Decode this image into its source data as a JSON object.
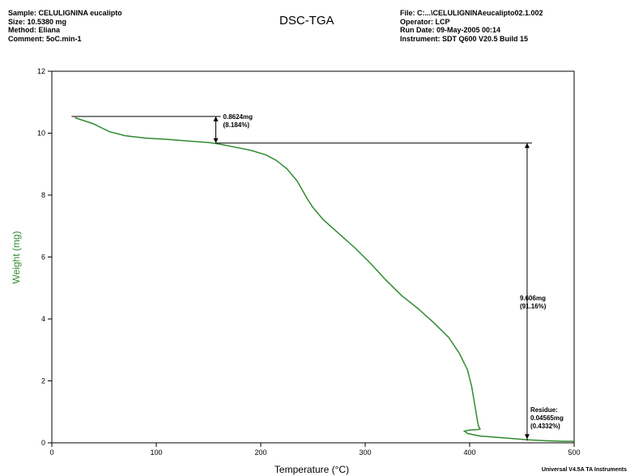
{
  "header": {
    "left": [
      "Sample: CELULIGNINA eucalipto",
      "Size:  10.5380 mg",
      "Method: Eliana",
      "Comment: 5oC.min-1"
    ],
    "right": [
      "File: C:...\\CELULIGNINAeucalipto02.1.002",
      "Operator: LCP",
      "Run Date: 09-May-2005 00:14",
      "Instrument: SDT Q600 V20.5 Build 15"
    ]
  },
  "footer": "Universal V4.5A TA Instruments",
  "colors": {
    "curve": "#2e8b2e",
    "ylabel": "#2e8b2e",
    "annotation": "#000000"
  },
  "chart_data": {
    "type": "line",
    "title": "DSC-TGA",
    "xlabel": "Temperature (°C)",
    "ylabel": "Weight (mg)",
    "xlim": [
      0,
      500
    ],
    "ylim": [
      0,
      12
    ],
    "xticks": [
      0,
      100,
      200,
      300,
      400,
      500
    ],
    "yticks": [
      0,
      2,
      4,
      6,
      8,
      10,
      12
    ],
    "xtick_labels": [
      "0",
      "100",
      "200",
      "300",
      "400",
      "500"
    ],
    "ytick_labels": [
      "0",
      "2",
      "4",
      "6",
      "8",
      "10",
      "12"
    ],
    "grid": false,
    "series": [
      {
        "x": [
          22,
          40,
          55,
          70,
          90,
          110,
          130,
          150,
          160,
          175,
          190,
          205,
          215,
          225,
          235,
          240,
          245,
          250,
          260,
          275,
          290,
          305,
          320,
          335,
          350,
          365,
          380,
          390,
          398,
          402,
          405,
          407,
          408,
          409,
          410,
          408,
          400,
          395,
          398,
          410,
          425,
          440,
          455,
          470,
          480,
          490,
          500
        ],
        "y": [
          10.5,
          10.3,
          10.05,
          9.92,
          9.84,
          9.8,
          9.75,
          9.7,
          9.65,
          9.55,
          9.45,
          9.3,
          9.12,
          8.85,
          8.45,
          8.15,
          7.85,
          7.6,
          7.2,
          6.75,
          6.3,
          5.8,
          5.25,
          4.75,
          4.35,
          3.9,
          3.4,
          2.9,
          2.35,
          1.8,
          1.2,
          0.8,
          0.6,
          0.5,
          0.45,
          0.43,
          0.41,
          0.38,
          0.3,
          0.22,
          0.18,
          0.14,
          0.1,
          0.07,
          0.06,
          0.05,
          0.05
        ]
      }
    ],
    "annotations": [
      {
        "lines": [
          "0.8624mg",
          "(8.184%)"
        ],
        "from_y": 10.54,
        "to_y": 9.68,
        "at_x": 157,
        "ref_from_x": 22,
        "ref_to_x": 157
      },
      {
        "lines": [
          "9.606mg",
          "(91.16%)"
        ],
        "from_y": 9.68,
        "to_y": 0.07,
        "at_x": 455,
        "ref_to_x": 455
      },
      {
        "lines": [
          "Residue:",
          "0.04565mg",
          "(0.4332%)"
        ],
        "at_x": 455,
        "at_y": 0.07
      }
    ]
  }
}
